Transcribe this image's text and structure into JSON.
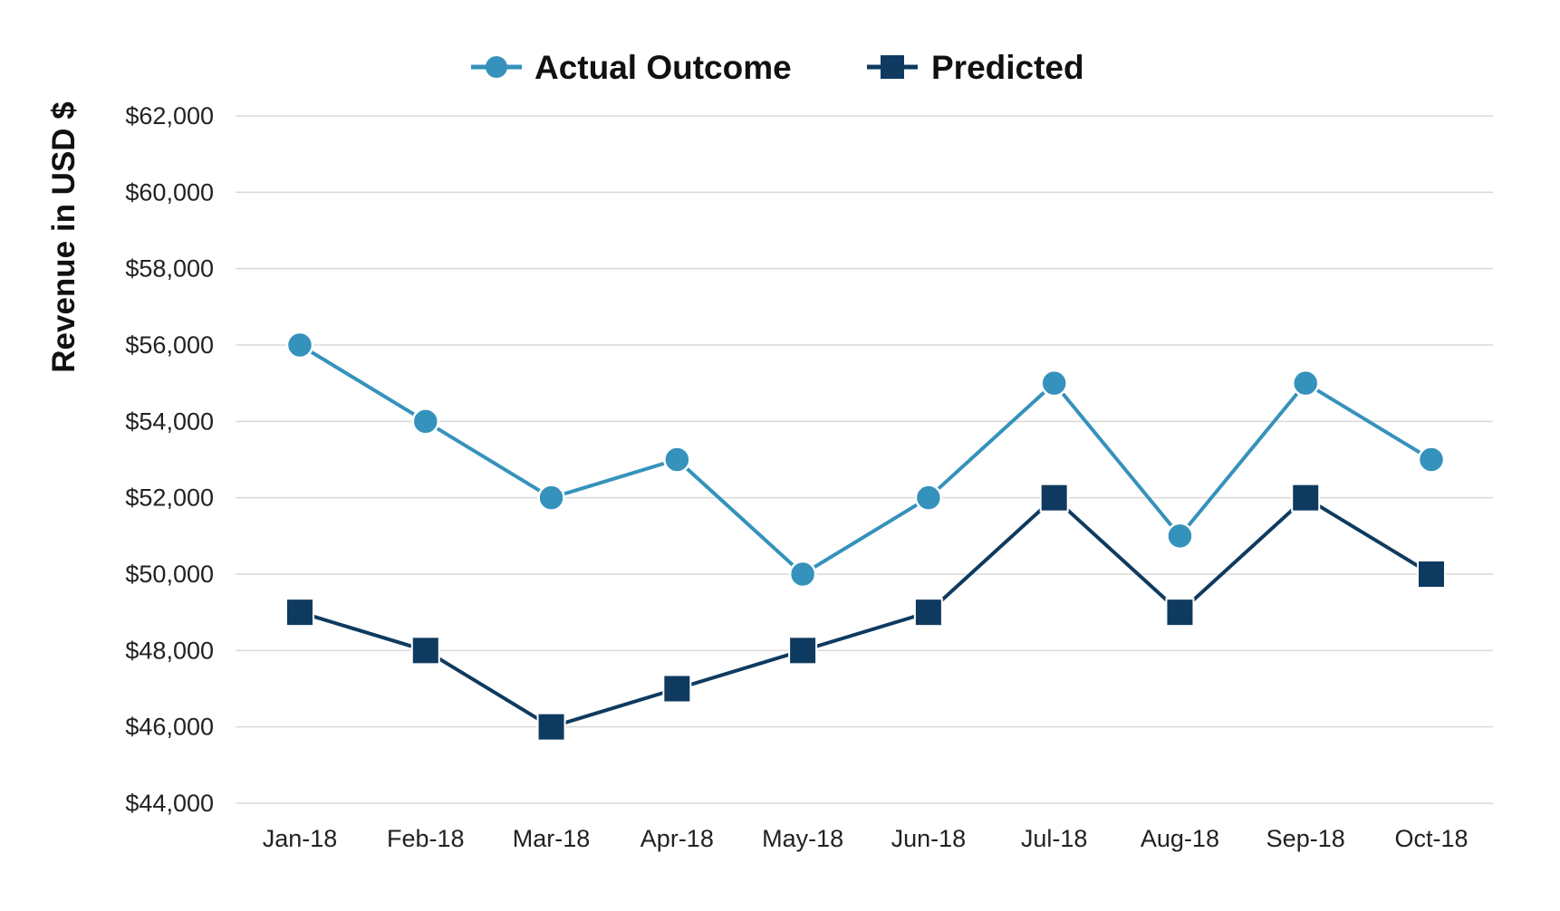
{
  "chart_data": {
    "type": "line",
    "title": "",
    "xlabel": "",
    "ylabel": "Revenue in USD $",
    "categories": [
      "Jan-18",
      "Feb-18",
      "Mar-18",
      "Apr-18",
      "May-18",
      "Jun-18",
      "Jul-18",
      "Aug-18",
      "Sep-18",
      "Oct-18"
    ],
    "y_tick_labels": [
      "$44,000",
      "$46,000",
      "$48,000",
      "$50,000",
      "$52,000",
      "$54,000",
      "$56,000",
      "$58,000",
      "$60,000",
      "$62,000"
    ],
    "ylim": [
      44000,
      62000
    ],
    "grid": true,
    "legend_position": "top",
    "series": [
      {
        "name": "Actual Outcome",
        "marker": "circle",
        "color": "#3592BC",
        "values": [
          56000,
          54000,
          52000,
          53000,
          50000,
          52000,
          55000,
          51000,
          55000,
          53000
        ]
      },
      {
        "name": "Predicted",
        "marker": "square",
        "color": "#0F3A5F",
        "values": [
          49000,
          48000,
          46000,
          47000,
          48000,
          49000,
          52000,
          49000,
          52000,
          50000
        ]
      }
    ]
  }
}
